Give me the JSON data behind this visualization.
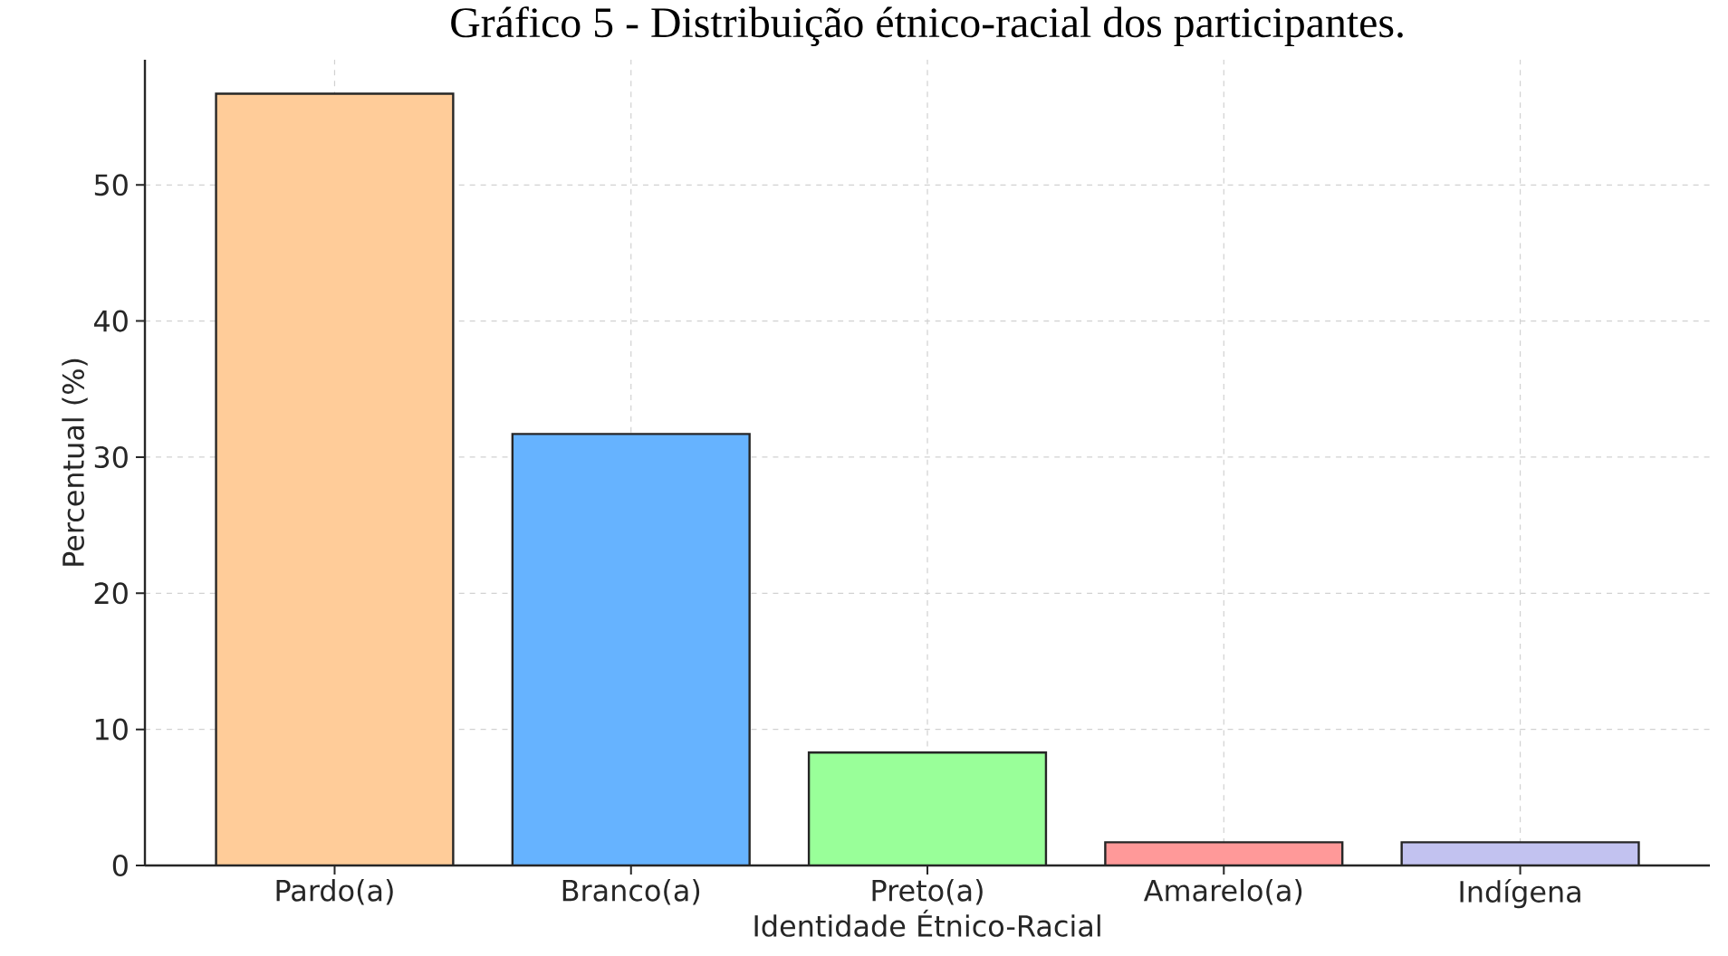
{
  "chart_data": {
    "type": "bar",
    "title": "Gráfico 5 - Distribuição étnico-racial dos participantes.",
    "xlabel": "Identidade Étnico-Racial",
    "ylabel": "Percentual (%)",
    "categories": [
      "Pardo(a)",
      "Branco(a)",
      "Preto(a)",
      "Amarelo(a)",
      "Indígena"
    ],
    "values": [
      56.7,
      31.7,
      8.3,
      1.7,
      1.7
    ],
    "colors": [
      "#ffcc99",
      "#66b3ff",
      "#99ff99",
      "#ff9999",
      "#c2c2f0"
    ],
    "ylim": [
      0,
      59.2
    ],
    "yticks": [
      0,
      10,
      20,
      30,
      40,
      50
    ],
    "grid": true
  }
}
